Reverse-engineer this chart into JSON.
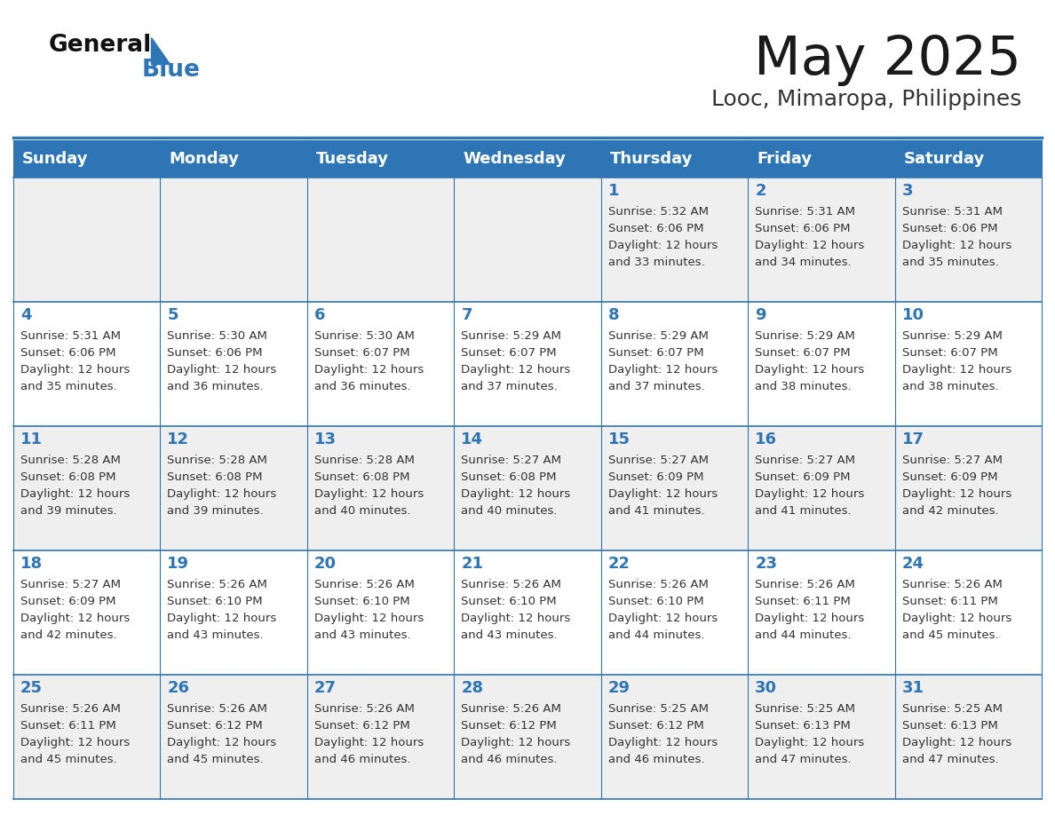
{
  "title": "May 2025",
  "subtitle": "Looc, Mimaropa, Philippines",
  "header_bg_color": "#2E75B6",
  "header_text_color": "#FFFFFF",
  "day_names": [
    "Sunday",
    "Monday",
    "Tuesday",
    "Wednesday",
    "Thursday",
    "Friday",
    "Saturday"
  ],
  "alt_row_color": "#EFEFEF",
  "normal_row_color": "#FFFFFF",
  "border_color": "#2E75B6",
  "day_num_color": "#2E75B6",
  "text_color": "#333333",
  "title_color": "#1a1a1a",
  "subtitle_color": "#333333",
  "logo_general_color": "#111111",
  "logo_blue_color": "#2E75B6",
  "logo_triangle_color": "#2E75B6",
  "calendar": [
    [
      {
        "day": null,
        "sunrise": null,
        "sunset": null,
        "daylight": null
      },
      {
        "day": null,
        "sunrise": null,
        "sunset": null,
        "daylight": null
      },
      {
        "day": null,
        "sunrise": null,
        "sunset": null,
        "daylight": null
      },
      {
        "day": null,
        "sunrise": null,
        "sunset": null,
        "daylight": null
      },
      {
        "day": 1,
        "sunrise": "5:32 AM",
        "sunset": "6:06 PM",
        "daylight": "12 hours\nand 33 minutes."
      },
      {
        "day": 2,
        "sunrise": "5:31 AM",
        "sunset": "6:06 PM",
        "daylight": "12 hours\nand 34 minutes."
      },
      {
        "day": 3,
        "sunrise": "5:31 AM",
        "sunset": "6:06 PM",
        "daylight": "12 hours\nand 35 minutes."
      }
    ],
    [
      {
        "day": 4,
        "sunrise": "5:31 AM",
        "sunset": "6:06 PM",
        "daylight": "12 hours\nand 35 minutes."
      },
      {
        "day": 5,
        "sunrise": "5:30 AM",
        "sunset": "6:06 PM",
        "daylight": "12 hours\nand 36 minutes."
      },
      {
        "day": 6,
        "sunrise": "5:30 AM",
        "sunset": "6:07 PM",
        "daylight": "12 hours\nand 36 minutes."
      },
      {
        "day": 7,
        "sunrise": "5:29 AM",
        "sunset": "6:07 PM",
        "daylight": "12 hours\nand 37 minutes."
      },
      {
        "day": 8,
        "sunrise": "5:29 AM",
        "sunset": "6:07 PM",
        "daylight": "12 hours\nand 37 minutes."
      },
      {
        "day": 9,
        "sunrise": "5:29 AM",
        "sunset": "6:07 PM",
        "daylight": "12 hours\nand 38 minutes."
      },
      {
        "day": 10,
        "sunrise": "5:29 AM",
        "sunset": "6:07 PM",
        "daylight": "12 hours\nand 38 minutes."
      }
    ],
    [
      {
        "day": 11,
        "sunrise": "5:28 AM",
        "sunset": "6:08 PM",
        "daylight": "12 hours\nand 39 minutes."
      },
      {
        "day": 12,
        "sunrise": "5:28 AM",
        "sunset": "6:08 PM",
        "daylight": "12 hours\nand 39 minutes."
      },
      {
        "day": 13,
        "sunrise": "5:28 AM",
        "sunset": "6:08 PM",
        "daylight": "12 hours\nand 40 minutes."
      },
      {
        "day": 14,
        "sunrise": "5:27 AM",
        "sunset": "6:08 PM",
        "daylight": "12 hours\nand 40 minutes."
      },
      {
        "day": 15,
        "sunrise": "5:27 AM",
        "sunset": "6:09 PM",
        "daylight": "12 hours\nand 41 minutes."
      },
      {
        "day": 16,
        "sunrise": "5:27 AM",
        "sunset": "6:09 PM",
        "daylight": "12 hours\nand 41 minutes."
      },
      {
        "day": 17,
        "sunrise": "5:27 AM",
        "sunset": "6:09 PM",
        "daylight": "12 hours\nand 42 minutes."
      }
    ],
    [
      {
        "day": 18,
        "sunrise": "5:27 AM",
        "sunset": "6:09 PM",
        "daylight": "12 hours\nand 42 minutes."
      },
      {
        "day": 19,
        "sunrise": "5:26 AM",
        "sunset": "6:10 PM",
        "daylight": "12 hours\nand 43 minutes."
      },
      {
        "day": 20,
        "sunrise": "5:26 AM",
        "sunset": "6:10 PM",
        "daylight": "12 hours\nand 43 minutes."
      },
      {
        "day": 21,
        "sunrise": "5:26 AM",
        "sunset": "6:10 PM",
        "daylight": "12 hours\nand 43 minutes."
      },
      {
        "day": 22,
        "sunrise": "5:26 AM",
        "sunset": "6:10 PM",
        "daylight": "12 hours\nand 44 minutes."
      },
      {
        "day": 23,
        "sunrise": "5:26 AM",
        "sunset": "6:11 PM",
        "daylight": "12 hours\nand 44 minutes."
      },
      {
        "day": 24,
        "sunrise": "5:26 AM",
        "sunset": "6:11 PM",
        "daylight": "12 hours\nand 45 minutes."
      }
    ],
    [
      {
        "day": 25,
        "sunrise": "5:26 AM",
        "sunset": "6:11 PM",
        "daylight": "12 hours\nand 45 minutes."
      },
      {
        "day": 26,
        "sunrise": "5:26 AM",
        "sunset": "6:12 PM",
        "daylight": "12 hours\nand 45 minutes."
      },
      {
        "day": 27,
        "sunrise": "5:26 AM",
        "sunset": "6:12 PM",
        "daylight": "12 hours\nand 46 minutes."
      },
      {
        "day": 28,
        "sunrise": "5:26 AM",
        "sunset": "6:12 PM",
        "daylight": "12 hours\nand 46 minutes."
      },
      {
        "day": 29,
        "sunrise": "5:25 AM",
        "sunset": "6:12 PM",
        "daylight": "12 hours\nand 46 minutes."
      },
      {
        "day": 30,
        "sunrise": "5:25 AM",
        "sunset": "6:13 PM",
        "daylight": "12 hours\nand 47 minutes."
      },
      {
        "day": 31,
        "sunrise": "5:25 AM",
        "sunset": "6:13 PM",
        "daylight": "12 hours\nand 47 minutes."
      }
    ]
  ]
}
